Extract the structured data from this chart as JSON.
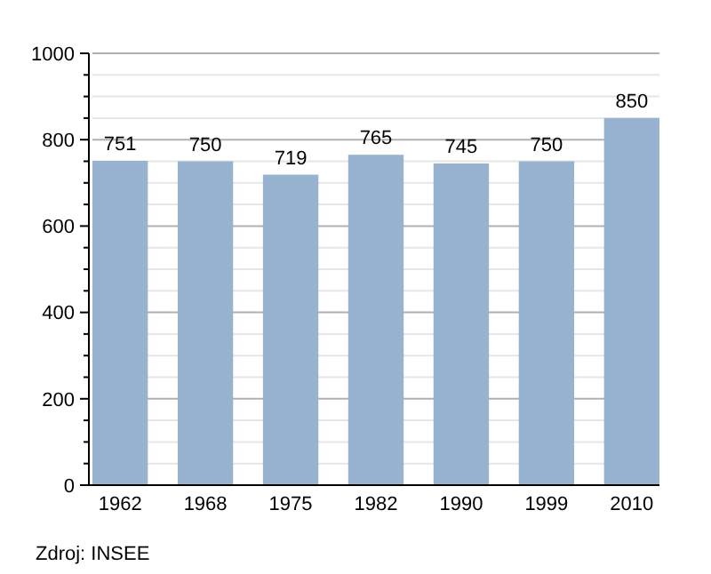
{
  "chart_data": {
    "type": "bar",
    "categories": [
      "1962",
      "1968",
      "1975",
      "1982",
      "1990",
      "1999",
      "2010"
    ],
    "values": [
      751,
      750,
      719,
      765,
      745,
      750,
      850
    ],
    "color": "#98b3cf",
    "ylim": [
      0,
      1000
    ],
    "yticks": [
      0,
      {
        "value": 50,
        "label": null
      },
      {
        "value": 100,
        "label": null
      },
      {
        "value": 150,
        "label": null
      },
      200,
      {
        "value": 250,
        "label": null
      },
      {
        "value": 300,
        "label": null
      },
      {
        "value": 350,
        "label": null
      },
      400,
      {
        "value": 450,
        "label": null
      },
      {
        "value": 500,
        "label": null
      },
      {
        "value": 550,
        "label": null
      },
      600,
      {
        "value": 650,
        "label": null
      },
      {
        "value": 700,
        "label": null
      },
      {
        "value": 750,
        "label": null
      },
      800,
      {
        "value": 850,
        "label": null
      },
      {
        "value": 900,
        "label": null
      },
      {
        "value": 950,
        "label": null
      },
      1000
    ],
    "grid": true,
    "data_labels": true,
    "annotations": [
      "Zdroj: INSEE"
    ]
  }
}
